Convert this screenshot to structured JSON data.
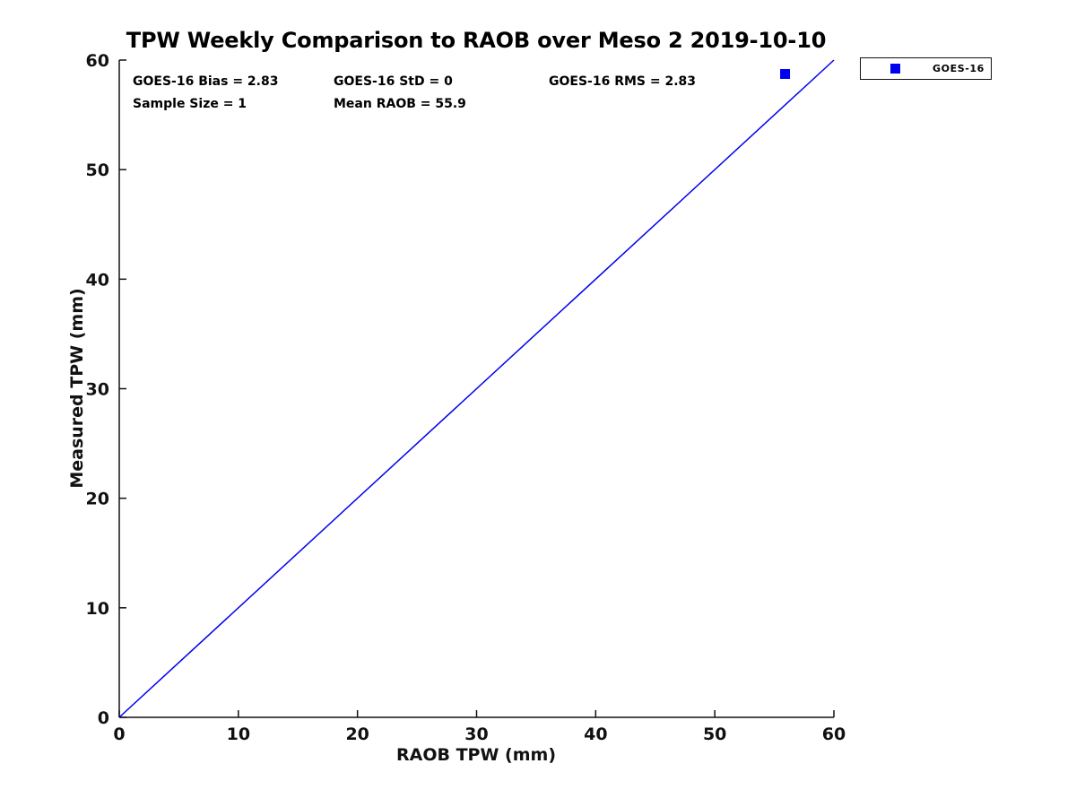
{
  "title": "TPW Weekly Comparison to RAOB over Meso 2 2019-10-10",
  "annotations": {
    "bias": "GOES-16 Bias = 2.83",
    "std": "GOES-16 StD = 0",
    "rms": "GOES-16 RMS = 2.83",
    "sample_size": "Sample Size = 1",
    "mean_raob": "Mean RAOB = 55.9"
  },
  "legend": {
    "position": "top-right",
    "entries": [
      {
        "label": "GOES-16",
        "marker": "square",
        "color": "#0000ee"
      }
    ]
  },
  "chart_data": {
    "type": "scatter",
    "title": "TPW Weekly Comparison to RAOB over Meso 2 2019-10-10",
    "xlabel": "RAOB TPW (mm)",
    "ylabel": "Measured TPW (mm)",
    "xlim": [
      0,
      60
    ],
    "ylim": [
      0,
      60
    ],
    "xticks": [
      0,
      10,
      20,
      30,
      40,
      50,
      60
    ],
    "yticks": [
      0,
      10,
      20,
      30,
      40,
      50,
      60
    ],
    "grid": false,
    "axis_color": "#111111",
    "series": [
      {
        "name": "identity-line",
        "type": "line",
        "color": "#0000ee",
        "points": [
          [
            0,
            0
          ],
          [
            60,
            60
          ]
        ]
      },
      {
        "name": "GOES-16",
        "type": "scatter",
        "marker": "square",
        "marker_size": 11,
        "color": "#0000ee",
        "points": [
          [
            55.9,
            58.73
          ]
        ]
      }
    ],
    "stats": {
      "goes16_bias": 2.83,
      "goes16_std": 0,
      "goes16_rms": 2.83,
      "sample_size": 1,
      "mean_raob": 55.9
    }
  }
}
